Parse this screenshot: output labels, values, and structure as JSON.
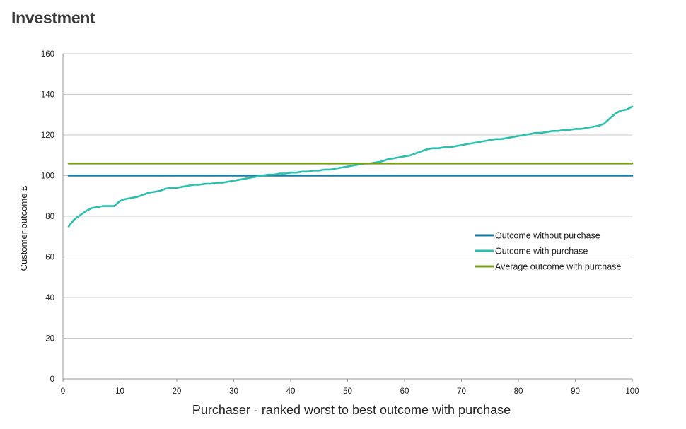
{
  "page": {
    "title": "Investment"
  },
  "chart_data": {
    "type": "line",
    "title": "",
    "xlabel": "Purchaser - ranked worst to best outcome with purchase",
    "ylabel": "Customer outcome £",
    "xlim": [
      0,
      100
    ],
    "ylim": [
      0,
      160
    ],
    "xticks": [
      0,
      10,
      20,
      30,
      40,
      50,
      60,
      70,
      80,
      90,
      100
    ],
    "yticks": [
      0,
      20,
      40,
      60,
      80,
      100,
      120,
      140,
      160
    ],
    "grid": "horizontal",
    "legend_position": "right",
    "series": [
      {
        "name": "Outcome without purchase",
        "color": "#1a7fa0",
        "x": [
          1,
          100
        ],
        "y": [
          100,
          100
        ]
      },
      {
        "name": "Outcome with purchase",
        "color": "#2bbfae",
        "x": [
          1,
          2,
          3,
          4,
          5,
          6,
          7,
          8,
          9,
          10,
          11,
          12,
          13,
          14,
          15,
          16,
          17,
          18,
          19,
          20,
          21,
          22,
          23,
          24,
          25,
          26,
          27,
          28,
          29,
          30,
          31,
          32,
          33,
          34,
          35,
          36,
          37,
          38,
          39,
          40,
          41,
          42,
          43,
          44,
          45,
          46,
          47,
          48,
          49,
          50,
          51,
          52,
          53,
          54,
          55,
          56,
          57,
          58,
          59,
          60,
          61,
          62,
          63,
          64,
          65,
          66,
          67,
          68,
          69,
          70,
          71,
          72,
          73,
          74,
          75,
          76,
          77,
          78,
          79,
          80,
          81,
          82,
          83,
          84,
          85,
          86,
          87,
          88,
          89,
          90,
          91,
          92,
          93,
          94,
          95,
          96,
          97,
          98,
          99,
          100
        ],
        "y": [
          75,
          78.5,
          80.5,
          82.5,
          84,
          84.5,
          85,
          85,
          85,
          87.5,
          88.5,
          89,
          89.5,
          90.5,
          91.5,
          92,
          92.5,
          93.5,
          94,
          94,
          94.5,
          95,
          95.5,
          95.5,
          96,
          96,
          96.5,
          96.5,
          97,
          97.5,
          98,
          98.5,
          99,
          99.5,
          100,
          100.5,
          100.5,
          101,
          101,
          101.5,
          101.5,
          102,
          102,
          102.5,
          102.5,
          103,
          103,
          103.5,
          104,
          104.5,
          105,
          105.5,
          106,
          106,
          106.5,
          107,
          108,
          108.5,
          109,
          109.5,
          110,
          111,
          112,
          113,
          113.5,
          113.5,
          114,
          114,
          114.5,
          115,
          115.5,
          116,
          116.5,
          117,
          117.5,
          118,
          118,
          118.5,
          119,
          119.5,
          120,
          120.5,
          121,
          121,
          121.5,
          122,
          122,
          122.5,
          122.5,
          123,
          123,
          123.5,
          124,
          124.5,
          125.5,
          128,
          130.5,
          132,
          132.5,
          134
        ]
      },
      {
        "name": "Average outcome with purchase",
        "color": "#7aa11a",
        "x": [
          1,
          100
        ],
        "y": [
          106,
          106
        ]
      }
    ]
  }
}
